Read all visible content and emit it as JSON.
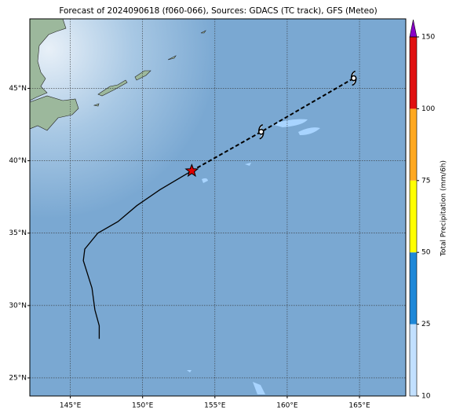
{
  "title": "Forecast of 2024090618 (f060-066), Sources: GDACS (TC track), GFS (Meteo)",
  "map": {
    "lonlim": [
      142.2,
      168.2
    ],
    "latlim": [
      23.75,
      49.8
    ],
    "lonticks": [
      {
        "value": 145,
        "label": "145°E"
      },
      {
        "value": 150,
        "label": "150°E"
      },
      {
        "value": 155,
        "label": "155°E"
      },
      {
        "value": 160,
        "label": "160°E"
      },
      {
        "value": 165,
        "label": "165°E"
      }
    ],
    "latticks": [
      {
        "value": 25,
        "label": "25°N"
      },
      {
        "value": 30,
        "label": "30°N"
      },
      {
        "value": 35,
        "label": "35°N"
      },
      {
        "value": 40,
        "label": "40°N"
      },
      {
        "value": 45,
        "label": "45°N"
      }
    ]
  },
  "track": {
    "past": {
      "lon": [
        147.0,
        147.0,
        146.7,
        146.5,
        145.9,
        146.0,
        146.9,
        148.3,
        149.6,
        151.2,
        153.4
      ],
      "lat": [
        27.7,
        28.6,
        29.7,
        31.2,
        33.1,
        33.9,
        35.0,
        35.8,
        36.9,
        38.0,
        39.3
      ]
    },
    "current": {
      "lon": 153.4,
      "lat": 39.3
    },
    "forecast": {
      "lon": [
        153.4,
        158.2,
        164.6
      ],
      "lat": [
        39.3,
        42.0,
        45.7
      ]
    }
  },
  "colorbar": {
    "label": "Total Precipitation (mm/6h)",
    "bounds": [
      10,
      25,
      50,
      75,
      100,
      150
    ],
    "colors": [
      "#c2e0ff",
      "#1e88d8",
      "#ffff00",
      "#ffa820",
      "#e01010"
    ],
    "extend_color": "#8a00c8"
  }
}
